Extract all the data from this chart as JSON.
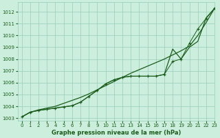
{
  "title": "Graphe pression niveau de la mer (hPa)",
  "bg_color": "#cceedd",
  "grid_color": "#99ccbb",
  "line_color": "#1a5c1a",
  "xlim": [
    -0.5,
    23
  ],
  "ylim": [
    1002.8,
    1012.8
  ],
  "yticks": [
    1003,
    1004,
    1005,
    1006,
    1007,
    1008,
    1009,
    1010,
    1011,
    1012
  ],
  "xticks": [
    0,
    1,
    2,
    3,
    4,
    5,
    6,
    7,
    8,
    9,
    10,
    11,
    12,
    13,
    14,
    15,
    16,
    17,
    18,
    19,
    20,
    21,
    22,
    23
  ],
  "line_straight": [
    1003.1,
    1003.5,
    1003.7,
    1003.85,
    1004.0,
    1004.25,
    1004.5,
    1004.75,
    1005.05,
    1005.4,
    1005.75,
    1006.1,
    1006.45,
    1006.8,
    1007.1,
    1007.4,
    1007.7,
    1008.0,
    1008.35,
    1008.7,
    1009.1,
    1010.0,
    1011.1,
    1012.3
  ],
  "line_curve": [
    1003.1,
    1003.5,
    1003.65,
    1003.75,
    1003.85,
    1003.95,
    1004.05,
    1004.35,
    1004.85,
    1005.35,
    1005.9,
    1006.25,
    1006.45,
    1006.55,
    1006.55,
    1006.55,
    1006.55,
    1006.7,
    1008.85,
    1008.0,
    1009.0,
    1009.5,
    1011.5,
    1012.3
  ],
  "line_marker": [
    1003.1,
    1003.5,
    1003.65,
    1003.75,
    1003.85,
    1003.95,
    1004.05,
    1004.35,
    1004.85,
    1005.35,
    1005.9,
    1006.25,
    1006.45,
    1006.55,
    1006.55,
    1006.55,
    1006.55,
    1006.7,
    1007.8,
    1008.0,
    1009.35,
    1010.55,
    1011.45,
    1012.3
  ]
}
